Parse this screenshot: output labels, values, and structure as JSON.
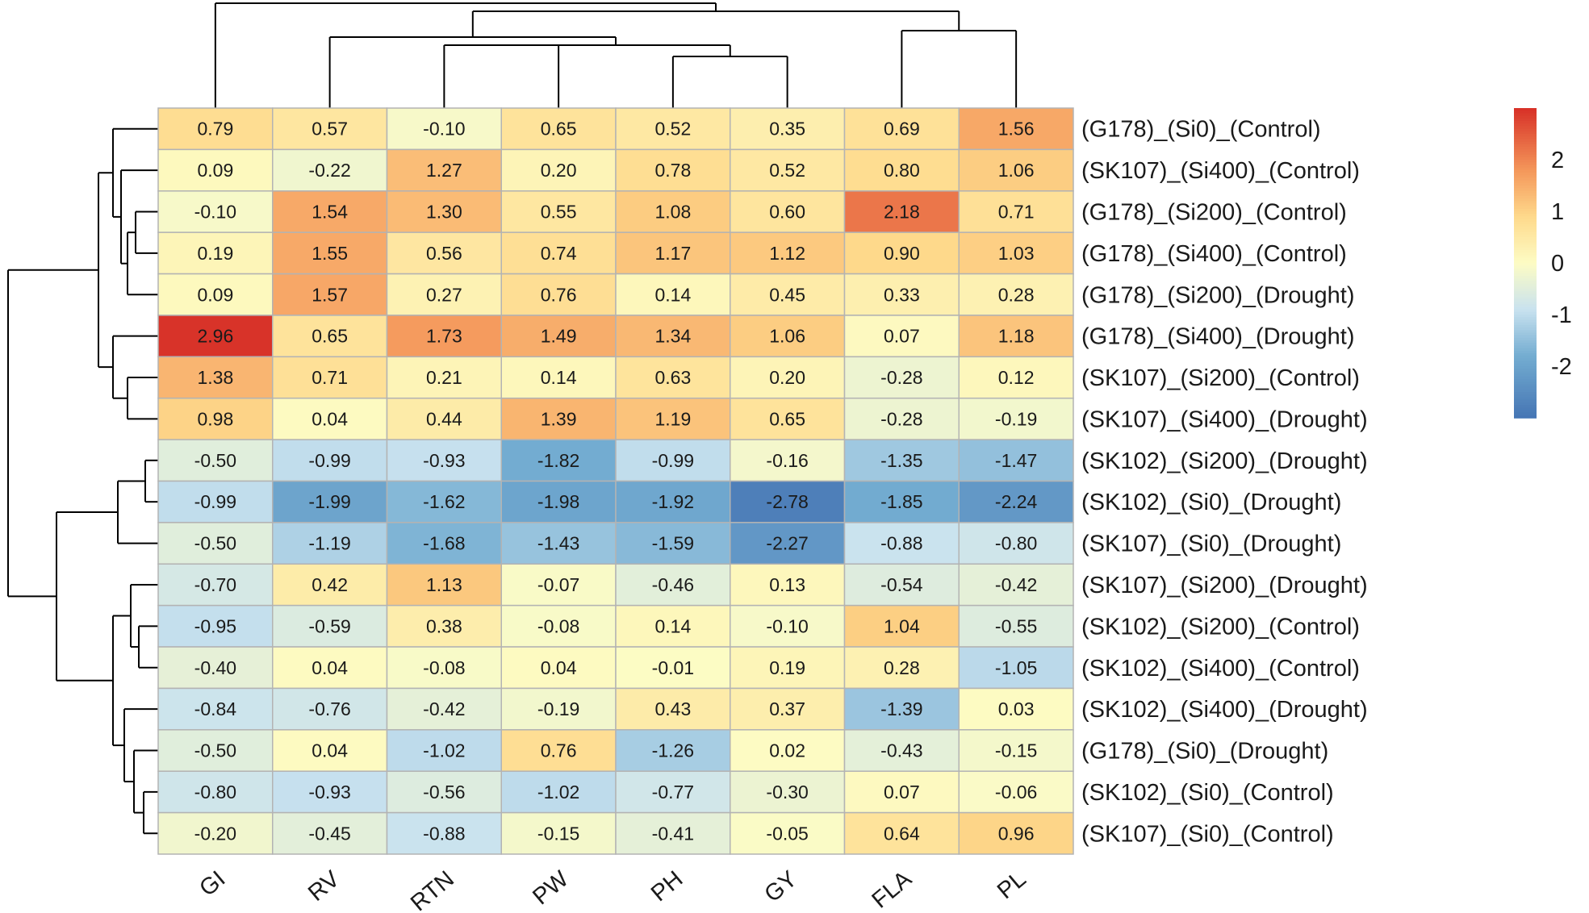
{
  "chart_data": {
    "type": "heatmap",
    "columns": [
      "GI",
      "RV",
      "RTN",
      "PW",
      "PH",
      "GY",
      "FLA",
      "PL"
    ],
    "rows": [
      "(G178)_(Si0)_(Control)",
      "(SK107)_(Si400)_(Control)",
      "(G178)_(Si200)_(Control)",
      "(G178)_(Si400)_(Control)",
      "(G178)_(Si200)_(Drought)",
      "(G178)_(Si400)_(Drought)",
      "(SK107)_(Si200)_(Control)",
      "(SK107)_(Si400)_(Drought)",
      "(SK102)_(Si200)_(Drought)",
      "(SK102)_(Si0)_(Drought)",
      "(SK107)_(Si0)_(Drought)",
      "(SK107)_(Si200)_(Drought)",
      "(SK102)_(Si200)_(Control)",
      "(SK102)_(Si400)_(Control)",
      "(SK102)_(Si400)_(Drought)",
      "(G178)_(Si0)_(Drought)",
      "(SK102)_(Si0)_(Control)",
      "(SK107)_(Si0)_(Control)"
    ],
    "values": [
      [
        0.79,
        0.57,
        -0.1,
        0.65,
        0.52,
        0.35,
        0.69,
        1.56
      ],
      [
        0.09,
        -0.22,
        1.27,
        0.2,
        0.78,
        0.52,
        0.8,
        1.06
      ],
      [
        -0.1,
        1.54,
        1.3,
        0.55,
        1.08,
        0.6,
        2.18,
        0.71
      ],
      [
        0.19,
        1.55,
        0.56,
        0.74,
        1.17,
        1.12,
        0.9,
        1.03
      ],
      [
        0.09,
        1.57,
        0.27,
        0.76,
        0.14,
        0.45,
        0.33,
        0.28
      ],
      [
        2.96,
        0.65,
        1.73,
        1.49,
        1.34,
        1.06,
        0.07,
        1.18
      ],
      [
        1.38,
        0.71,
        0.21,
        0.14,
        0.63,
        0.2,
        -0.28,
        0.12
      ],
      [
        0.98,
        0.04,
        0.44,
        1.39,
        1.19,
        0.65,
        -0.28,
        -0.19
      ],
      [
        -0.5,
        -0.99,
        -0.93,
        -1.82,
        -0.99,
        -0.16,
        -1.35,
        -1.47
      ],
      [
        -0.99,
        -1.99,
        -1.62,
        -1.98,
        -1.92,
        -2.78,
        -1.85,
        -2.24
      ],
      [
        -0.5,
        -1.19,
        -1.68,
        -1.43,
        -1.59,
        -2.27,
        -0.88,
        -0.8
      ],
      [
        -0.7,
        0.42,
        1.13,
        -0.07,
        -0.46,
        0.13,
        -0.54,
        -0.42
      ],
      [
        -0.95,
        -0.59,
        0.38,
        -0.08,
        0.14,
        -0.1,
        1.04,
        -0.55
      ],
      [
        -0.4,
        0.04,
        -0.08,
        0.04,
        -0.01,
        0.19,
        0.28,
        -1.05
      ],
      [
        -0.84,
        -0.76,
        -0.42,
        -0.19,
        0.43,
        0.37,
        -1.39,
        0.03
      ],
      [
        -0.5,
        0.04,
        -1.02,
        0.76,
        -1.26,
        0.02,
        -0.43,
        -0.15
      ],
      [
        -0.8,
        -0.93,
        -0.56,
        -1.02,
        -0.77,
        -0.3,
        0.07,
        -0.06
      ],
      [
        -0.2,
        -0.45,
        -0.88,
        -0.15,
        -0.41,
        -0.05,
        0.64,
        0.96
      ]
    ],
    "color_scale": {
      "min": -3,
      "max": 3,
      "stops": [
        {
          "value": -3,
          "color": "#4575b4"
        },
        {
          "value": -1.8,
          "color": "#74add1"
        },
        {
          "value": -0.9,
          "color": "#c9e2ef"
        },
        {
          "value": 0,
          "color": "#fdfcc4"
        },
        {
          "value": 0.9,
          "color": "#fed98b"
        },
        {
          "value": 1.8,
          "color": "#f4965a"
        },
        {
          "value": 3,
          "color": "#d73027"
        }
      ]
    },
    "legend": {
      "ticks": [
        2,
        1,
        0,
        -1,
        -2
      ],
      "tick_labels": [
        "2",
        "1",
        "0",
        "-1",
        "-2"
      ],
      "placement": "right"
    },
    "grid_color": "#b3b3b3",
    "column_dendrogram": true,
    "row_dendrogram": true
  }
}
